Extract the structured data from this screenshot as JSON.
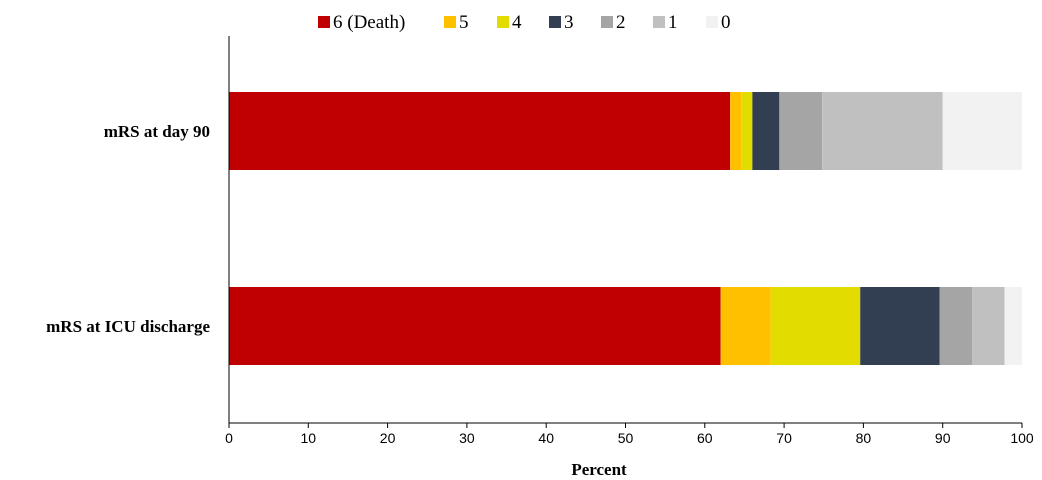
{
  "chart_data": {
    "type": "bar",
    "orientation": "horizontal",
    "stacked": true,
    "categories": [
      "mRS at day 90",
      "mRS at ICU discharge"
    ],
    "series": [
      {
        "name": "6 (Death)",
        "color": "#c00000",
        "values": [
          63.2,
          62.0
        ]
      },
      {
        "name": "5",
        "color": "#ffc000",
        "values": [
          1.4,
          6.3
        ]
      },
      {
        "name": "4",
        "color": "#e2dc00",
        "values": [
          1.4,
          11.3
        ]
      },
      {
        "name": "3",
        "color": "#323e51",
        "values": [
          3.4,
          10.0
        ]
      },
      {
        "name": "2",
        "color": "#a5a5a5",
        "values": [
          5.4,
          4.1
        ]
      },
      {
        "name": "1",
        "color": "#c0c0c0",
        "values": [
          15.2,
          4.1
        ]
      },
      {
        "name": "0",
        "color": "#f2f2f2",
        "values": [
          10.0,
          2.2
        ]
      }
    ],
    "xlabel": "Percent",
    "ylabel": "",
    "title": "",
    "xlim": [
      0,
      100
    ],
    "xticks": [
      "0",
      "10",
      "20",
      "30",
      "40",
      "50",
      "60",
      "70",
      "80",
      "90",
      "100"
    ],
    "legend_position": "top",
    "grid": false
  }
}
